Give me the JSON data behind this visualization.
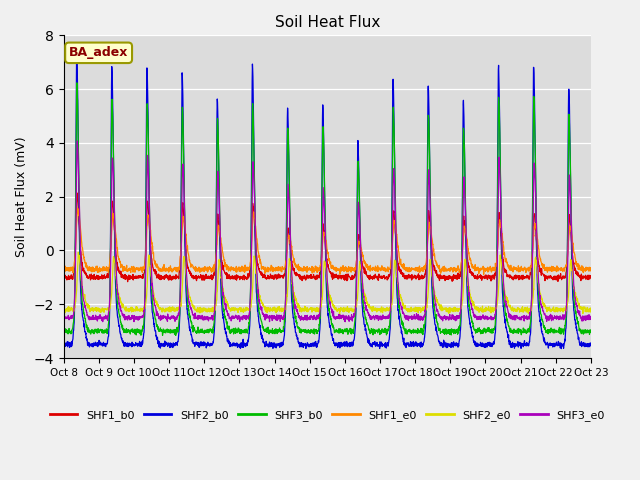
{
  "title": "Soil Heat Flux",
  "ylabel": "Soil Heat Flux (mV)",
  "ylim": [
    -4,
    8
  ],
  "yticks": [
    -4,
    -2,
    0,
    2,
    4,
    6,
    8
  ],
  "fig_bg": "#f0f0f0",
  "plot_bg": "#dcdcdc",
  "series": [
    {
      "name": "SHF1_b0",
      "color": "#dd0000"
    },
    {
      "name": "SHF2_b0",
      "color": "#0000dd"
    },
    {
      "name": "SHF3_b0",
      "color": "#00bb00"
    },
    {
      "name": "SHF1_e0",
      "color": "#ff8800"
    },
    {
      "name": "SHF2_e0",
      "color": "#dddd00"
    },
    {
      "name": "SHF3_e0",
      "color": "#aa00bb"
    }
  ],
  "x_tick_labels": [
    "Oct 8",
    "Oct 9",
    "Oct 10",
    "Oct 11",
    "Oct 12",
    "Oct 13",
    "Oct 14",
    "Oct 15",
    "Oct 16",
    "Oct 17",
    "Oct 18",
    "Oct 19",
    "Oct 20",
    "Oct 21",
    "Oct 22",
    "Oct 23"
  ],
  "annotation_text": "BA_adex",
  "annotation_color": "#8b0000",
  "annotation_bg": "#ffffcc",
  "annotation_border": "#999900",
  "days": 15,
  "pts_per_day": 144,
  "peak_day_amplitudes_blue": [
    7.1,
    6.6,
    6.5,
    6.4,
    5.5,
    6.6,
    5.2,
    5.3,
    4.1,
    6.2,
    6.0,
    5.5,
    6.6,
    6.6,
    5.9
  ],
  "peak_day_amplitudes_green": [
    5.9,
    5.4,
    5.3,
    5.2,
    4.8,
    5.3,
    4.5,
    4.6,
    3.4,
    5.1,
    5.0,
    4.5,
    5.5,
    5.5,
    4.9
  ],
  "peak_day_amplitudes_purple": [
    4.0,
    3.5,
    3.5,
    3.3,
    3.0,
    3.3,
    2.5,
    2.4,
    2.0,
    3.1,
    3.0,
    2.8,
    3.4,
    3.3,
    2.9
  ],
  "peak_day_amplitudes_red": [
    2.0,
    1.8,
    1.8,
    1.7,
    1.3,
    1.7,
    0.9,
    1.0,
    0.7,
    1.5,
    1.4,
    1.2,
    1.4,
    1.4,
    1.3
  ],
  "peak_day_amplitudes_orange": [
    1.5,
    1.3,
    1.3,
    1.2,
    0.9,
    1.3,
    0.6,
    0.7,
    0.4,
    1.1,
    1.0,
    0.9,
    1.1,
    1.0,
    0.9
  ],
  "peak_day_amplitudes_yellow": [
    0.3,
    0.2,
    0.2,
    0.2,
    0.1,
    0.2,
    0.1,
    0.1,
    0.0,
    0.1,
    0.1,
    0.1,
    0.2,
    0.2,
    0.1
  ],
  "trough_blue": -3.5,
  "trough_green": -3.0,
  "trough_purple": -2.5,
  "trough_red": -1.0,
  "trough_orange": -0.7,
  "trough_yellow": -2.2
}
